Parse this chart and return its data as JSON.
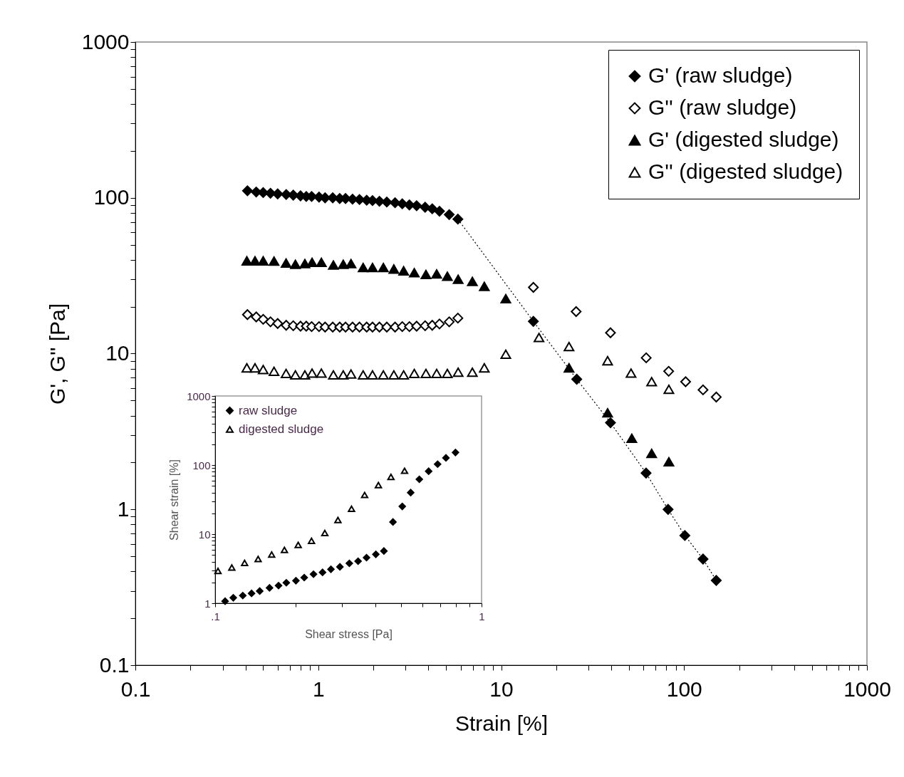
{
  "chart_data": [
    {
      "type": "scatter",
      "xlabel": "Strain [%]",
      "ylabel": "G', G'' [Pa]",
      "log": "xy",
      "legend": "top right",
      "xlim": [
        0.1,
        1000
      ],
      "ylim": [
        0.1,
        1000
      ],
      "xticks": [
        0.1,
        {
          "value": 0.2,
          "label": null
        },
        {
          "value": 0.3,
          "label": null
        },
        {
          "value": 0.4,
          "label": null
        },
        {
          "value": 0.5,
          "label": null
        },
        {
          "value": 0.6,
          "label": null
        },
        {
          "value": 0.7,
          "label": null
        },
        {
          "value": 0.8,
          "label": null
        },
        {
          "value": 0.9,
          "label": null
        },
        1,
        {
          "value": 2,
          "label": null
        },
        {
          "value": 3,
          "label": null
        },
        {
          "value": 4,
          "label": null
        },
        {
          "value": 5,
          "label": null
        },
        {
          "value": 6,
          "label": null
        },
        {
          "value": 7,
          "label": null
        },
        {
          "value": 8,
          "label": null
        },
        {
          "value": 9,
          "label": null
        },
        10,
        {
          "value": 20,
          "label": null
        },
        {
          "value": 30,
          "label": null
        },
        {
          "value": 40,
          "label": null
        },
        {
          "value": 50,
          "label": null
        },
        {
          "value": 60,
          "label": null
        },
        {
          "value": 70,
          "label": null
        },
        {
          "value": 80,
          "label": null
        },
        {
          "value": 90,
          "label": null
        },
        100,
        {
          "value": 200,
          "label": null
        },
        {
          "value": 300,
          "label": null
        },
        {
          "value": 400,
          "label": null
        },
        {
          "value": 500,
          "label": null
        },
        {
          "value": 600,
          "label": null
        },
        {
          "value": 700,
          "label": null
        },
        {
          "value": 800,
          "label": null
        },
        {
          "value": 900,
          "label": null
        },
        1000
      ],
      "yticks": [
        0.1,
        {
          "value": 0.2,
          "label": null
        },
        {
          "value": 0.3,
          "label": null
        },
        {
          "value": 0.4,
          "label": null
        },
        {
          "value": 0.5,
          "label": null
        },
        {
          "value": 0.6,
          "label": null
        },
        {
          "value": 0.7,
          "label": null
        },
        {
          "value": 0.8,
          "label": null
        },
        {
          "value": 0.9,
          "label": null
        },
        1,
        {
          "value": 2,
          "label": null
        },
        {
          "value": 3,
          "label": null
        },
        {
          "value": 4,
          "label": null
        },
        {
          "value": 5,
          "label": null
        },
        {
          "value": 6,
          "label": null
        },
        {
          "value": 7,
          "label": null
        },
        {
          "value": 8,
          "label": null
        },
        {
          "value": 9,
          "label": null
        },
        10,
        {
          "value": 20,
          "label": null
        },
        {
          "value": 30,
          "label": null
        },
        {
          "value": 40,
          "label": null
        },
        {
          "value": 50,
          "label": null
        },
        {
          "value": 60,
          "label": null
        },
        {
          "value": 70,
          "label": null
        },
        {
          "value": 80,
          "label": null
        },
        {
          "value": 90,
          "label": null
        },
        100,
        {
          "value": 200,
          "label": null
        },
        {
          "value": 300,
          "label": null
        },
        {
          "value": 400,
          "label": null
        },
        {
          "value": 500,
          "label": null
        },
        {
          "value": 600,
          "label": null
        },
        {
          "value": 700,
          "label": null
        },
        {
          "value": 800,
          "label": null
        },
        {
          "value": 900,
          "label": null
        },
        1000
      ],
      "series": [
        {
          "name": "G' (raw sludge)",
          "type": "line",
          "color": "#000000",
          "marker": "diamond",
          "line_style": "dotted",
          "x": [
            0.41,
            0.458,
            0.5,
            0.548,
            0.6,
            0.668,
            0.73,
            0.8,
            0.86,
            0.92,
            1.01,
            1.09,
            1.2,
            1.31,
            1.41,
            1.54,
            1.68,
            1.84,
            1.98,
            2.16,
            2.37,
            2.63,
            2.88,
            3.15,
            3.45,
            3.84,
            4.2,
            4.6,
            5.2,
            5.8,
            15.0,
            25.9,
            39.6,
            62,
            81.8,
            101,
            127,
            150
          ],
          "values": [
            111,
            109,
            108,
            107,
            106,
            105,
            104,
            103,
            102,
            102,
            101,
            100,
            100,
            99,
            99,
            98,
            97.5,
            96.5,
            96,
            95,
            94,
            93,
            91.5,
            90,
            89,
            87,
            85,
            82,
            78,
            73,
            16.1,
            6.85,
            3.6,
            1.71,
            1.0,
            0.68,
            0.48,
            0.35
          ]
        },
        {
          "name": "G'' (raw sludge)",
          "color": "#ffffff",
          "marker": "diamond",
          "x": [
            0.41,
            0.458,
            0.5,
            0.548,
            0.6,
            0.668,
            0.73,
            0.8,
            0.86,
            0.92,
            1.01,
            1.09,
            1.2,
            1.31,
            1.41,
            1.54,
            1.68,
            1.84,
            1.98,
            2.16,
            2.37,
            2.63,
            2.88,
            3.15,
            3.45,
            3.84,
            4.2,
            4.6,
            5.2,
            5.8,
            15.0,
            25.7,
            39.6,
            62.1,
            82.4,
            102,
            127,
            150
          ],
          "values": [
            17.8,
            17.2,
            16.6,
            16.0,
            15.6,
            15.2,
            15.1,
            15.0,
            15.0,
            14.9,
            14.9,
            14.8,
            14.8,
            14.8,
            14.8,
            14.8,
            14.8,
            14.8,
            14.8,
            14.8,
            14.8,
            14.8,
            14.9,
            14.9,
            15.0,
            15.1,
            15.2,
            15.5,
            16.0,
            16.9,
            26.6,
            18.6,
            13.6,
            9.4,
            7.7,
            6.6,
            5.85,
            5.26
          ]
        },
        {
          "name": "G' (digested sludge)",
          "color": "#000000",
          "marker": "triangle",
          "x": [
            0.407,
            0.451,
            0.5,
            0.573,
            0.667,
            0.75,
            0.845,
            0.925,
            1.04,
            1.21,
            1.37,
            1.51,
            1.76,
            1.98,
            2.27,
            2.59,
            2.93,
            3.35,
            3.88,
            4.44,
            5.08,
            5.82,
            6.96,
            8.09,
            10.6,
            23.5,
            38.2,
            51.8,
            66.5,
            82.6
          ],
          "values": [
            39.4,
            39.4,
            39.4,
            39.2,
            38.1,
            37.4,
            37.8,
            38.5,
            38.5,
            37.0,
            37.4,
            37.8,
            35.7,
            35.7,
            35.7,
            34.9,
            34.0,
            33.1,
            32.2,
            32.5,
            31.4,
            30.0,
            29.1,
            27.0,
            22.5,
            8.1,
            4.17,
            2.86,
            2.29,
            2.02
          ]
        },
        {
          "name": "G'' (digested sludge)",
          "color": "#ffffff",
          "marker": "triangle",
          "x": [
            0.407,
            0.451,
            0.5,
            0.573,
            0.667,
            0.75,
            0.845,
            0.925,
            1.04,
            1.21,
            1.37,
            1.51,
            1.76,
            1.98,
            2.27,
            2.59,
            2.93,
            3.35,
            3.88,
            4.44,
            5.08,
            5.82,
            6.96,
            8.09,
            10.6,
            16.1,
            23.5,
            38.2,
            51.3,
            66.5,
            82.6
          ],
          "values": [
            8.1,
            8.1,
            7.9,
            7.7,
            7.45,
            7.3,
            7.3,
            7.5,
            7.5,
            7.3,
            7.3,
            7.4,
            7.3,
            7.3,
            7.3,
            7.3,
            7.3,
            7.45,
            7.45,
            7.45,
            7.45,
            7.6,
            7.6,
            8.1,
            9.9,
            12.7,
            11.1,
            9.0,
            7.5,
            6.6,
            5.9
          ]
        }
      ]
    },
    {
      "type": "scatter",
      "xlabel": "Shear stress [Pa]",
      "ylabel": "Shear strain [%]",
      "log": "xy",
      "legend": "top left",
      "xlim": [
        0.1,
        1
      ],
      "ylim": [
        1,
        1000
      ],
      "xticks": [
        {
          "value": 0.1,
          "label": ".1"
        },
        {
          "value": 0.2,
          "label": null
        },
        {
          "value": 0.3,
          "label": null
        },
        {
          "value": 0.4,
          "label": null
        },
        {
          "value": 0.5,
          "label": null
        },
        {
          "value": 0.6,
          "label": null
        },
        {
          "value": 0.7,
          "label": null
        },
        {
          "value": 0.8,
          "label": null
        },
        {
          "value": 0.9,
          "label": null
        },
        1
      ],
      "yticks": [
        1,
        {
          "value": 2,
          "label": null
        },
        {
          "value": 3,
          "label": null
        },
        {
          "value": 4,
          "label": null
        },
        {
          "value": 5,
          "label": null
        },
        {
          "value": 6,
          "label": null
        },
        {
          "value": 7,
          "label": null
        },
        {
          "value": 8,
          "label": null
        },
        {
          "value": 9,
          "label": null
        },
        10,
        {
          "value": 20,
          "label": null
        },
        {
          "value": 30,
          "label": null
        },
        {
          "value": 40,
          "label": null
        },
        {
          "value": 50,
          "label": null
        },
        {
          "value": 60,
          "label": null
        },
        {
          "value": 70,
          "label": null
        },
        {
          "value": 80,
          "label": null
        },
        {
          "value": 90,
          "label": null
        },
        100,
        {
          "value": 200,
          "label": null
        },
        {
          "value": 300,
          "label": null
        },
        {
          "value": 400,
          "label": null
        },
        {
          "value": 500,
          "label": null
        },
        {
          "value": 600,
          "label": null
        },
        {
          "value": 700,
          "label": null
        },
        {
          "value": 800,
          "label": null
        },
        {
          "value": 900,
          "label": null
        },
        1000
      ],
      "series": [
        {
          "name": "raw sludge",
          "color": "#000000",
          "marker": "diamond",
          "x": [
            0.109,
            0.117,
            0.127,
            0.137,
            0.147,
            0.16,
            0.173,
            0.185,
            0.201,
            0.216,
            0.234,
            0.253,
            0.272,
            0.294,
            0.319,
            0.344,
            0.37,
            0.401,
            0.43,
            0.465,
            0.504,
            0.542,
            0.584,
            0.633,
            0.684,
            0.735,
            0.798
          ],
          "values": [
            1.07,
            1.2,
            1.29,
            1.39,
            1.5,
            1.67,
            1.8,
            1.98,
            2.12,
            2.35,
            2.63,
            2.8,
            3.1,
            3.36,
            3.78,
            4.06,
            4.57,
            5.1,
            5.7,
            15.0,
            25.2,
            39.9,
            62.2,
            81.4,
            103,
            127,
            152
          ]
        },
        {
          "name": "digested sludge",
          "color": "#ffffff",
          "marker": "triangle",
          "x": [
            0.1025,
            0.1155,
            0.129,
            0.145,
            0.163,
            0.182,
            0.205,
            0.23,
            0.258,
            0.289,
            0.325,
            0.364,
            0.41,
            0.457,
            0.514
          ],
          "values": [
            2.93,
            3.28,
            3.84,
            4.36,
            5.06,
            5.93,
            7.0,
            8.0,
            10.4,
            16.0,
            23.3,
            36.9,
            51.4,
            67.3,
            82.7
          ]
        }
      ]
    }
  ]
}
